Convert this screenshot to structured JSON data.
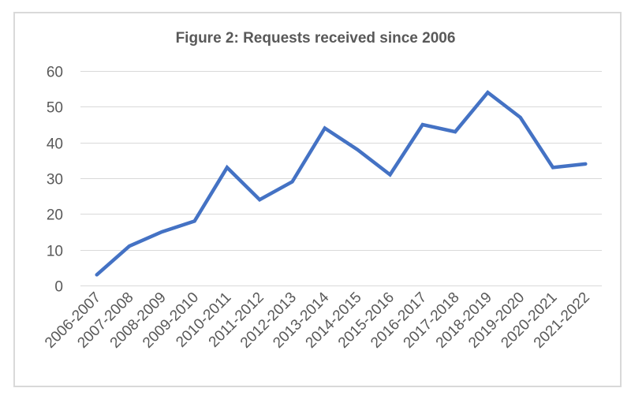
{
  "chart_data": {
    "type": "line",
    "title": "Figure 2: Requests received since 2006",
    "xlabel": "",
    "ylabel": "",
    "categories": [
      "2006-2007",
      "2007-2008",
      "2008-2009",
      "2009-2010",
      "2010-2011",
      "2011-2012",
      "2012-2013",
      "2013-2014",
      "2014-2015",
      "2015-2016",
      "2016-2017",
      "2017-2018",
      "2018-2019",
      "2019-2020",
      "2020-2021",
      "2021-2022"
    ],
    "series": [
      {
        "name": "Requests received",
        "color": "#4472c4",
        "values": [
          3,
          11,
          15,
          18,
          33,
          24,
          29,
          44,
          38,
          31,
          45,
          43,
          54,
          47,
          33,
          34
        ]
      }
    ],
    "ylim": [
      0,
      60
    ],
    "yticks": [
      0,
      10,
      20,
      30,
      40,
      50,
      60
    ],
    "grid": true,
    "legend": "none",
    "gridline_color": "#d9d9d9",
    "text_color": "#595959"
  }
}
